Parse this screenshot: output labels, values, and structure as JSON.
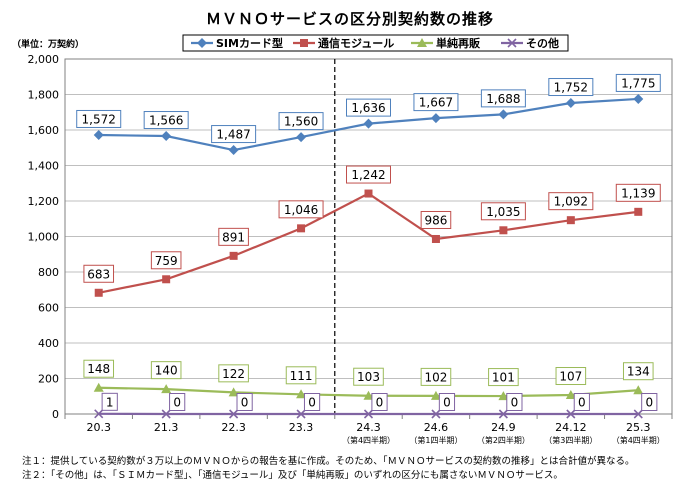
{
  "title": "ＭＶＮＯサービスの区分別契約数の推移",
  "unit_label": "（単位：万契約）",
  "colors": {
    "sim": "#4f81bd",
    "module": "#c0504d",
    "resale": "#9bbb59",
    "other": "#8064a2",
    "grid": "#bfbfbf",
    "axis": "#808080"
  },
  "chart_data": {
    "type": "line",
    "title": "ＭＶＮＯサービスの区分別契約数の推移",
    "ylabel": "（単位：万契約）",
    "ylim": [
      0,
      2000
    ],
    "yticks": [
      "0",
      "200",
      "400",
      "600",
      "800",
      "1,000",
      "1,200",
      "1,400",
      "1,600",
      "1,800",
      "2,000"
    ],
    "categories": [
      "20.3",
      "21.3",
      "22.3",
      "23.3",
      "24.3",
      "24.6",
      "24.9",
      "24.12",
      "25.3"
    ],
    "category_sublabels": [
      "",
      "",
      "",
      "",
      "（第4四半期）",
      "（第1四半期）",
      "（第2四半期）",
      "（第3四半期）",
      "（第4四半期）"
    ],
    "grid": true,
    "legend_position": "top",
    "divider_after_category": "23.3",
    "series": [
      {
        "name": "SIMカード型",
        "key": "sim",
        "marker": "diamond",
        "values": [
          1572,
          1566,
          1487,
          1560,
          1636,
          1667,
          1688,
          1752,
          1775
        ],
        "labels": [
          "1,572",
          "1,566",
          "1,487",
          "1,560",
          "1,636",
          "1,667",
          "1,688",
          "1,752",
          "1,775"
        ]
      },
      {
        "name": "通信モジュール",
        "key": "module",
        "marker": "square",
        "values": [
          683,
          759,
          891,
          1046,
          1242,
          986,
          1035,
          1092,
          1139
        ],
        "labels": [
          "683",
          "759",
          "891",
          "1,046",
          "1,242",
          "986",
          "1,035",
          "1,092",
          "1,139"
        ]
      },
      {
        "name": "単純再販",
        "key": "resale",
        "marker": "triangle",
        "values": [
          148,
          140,
          122,
          111,
          103,
          102,
          101,
          107,
          134
        ],
        "labels": [
          "148",
          "140",
          "122",
          "111",
          "103",
          "102",
          "101",
          "107",
          "134"
        ]
      },
      {
        "name": "その他",
        "key": "other",
        "marker": "x",
        "values": [
          1,
          0,
          0,
          0,
          0,
          0,
          0,
          0,
          0
        ],
        "labels": [
          "1",
          "0",
          "0",
          "0",
          "0",
          "0",
          "0",
          "0",
          "0"
        ]
      }
    ]
  },
  "notes": [
    "注１：提供している契約数が３万以上のＭＶＮＯからの報告を基に作成。そのため、「ＭＶＮＯサービスの契約数の推移」とは合計値が異なる。",
    "注２：「その他」は、「ＳＩＭカード型」、「通信モジュール」及び「単純再販」のいずれの区分にも属さないＭＶＮＯサービス。"
  ]
}
